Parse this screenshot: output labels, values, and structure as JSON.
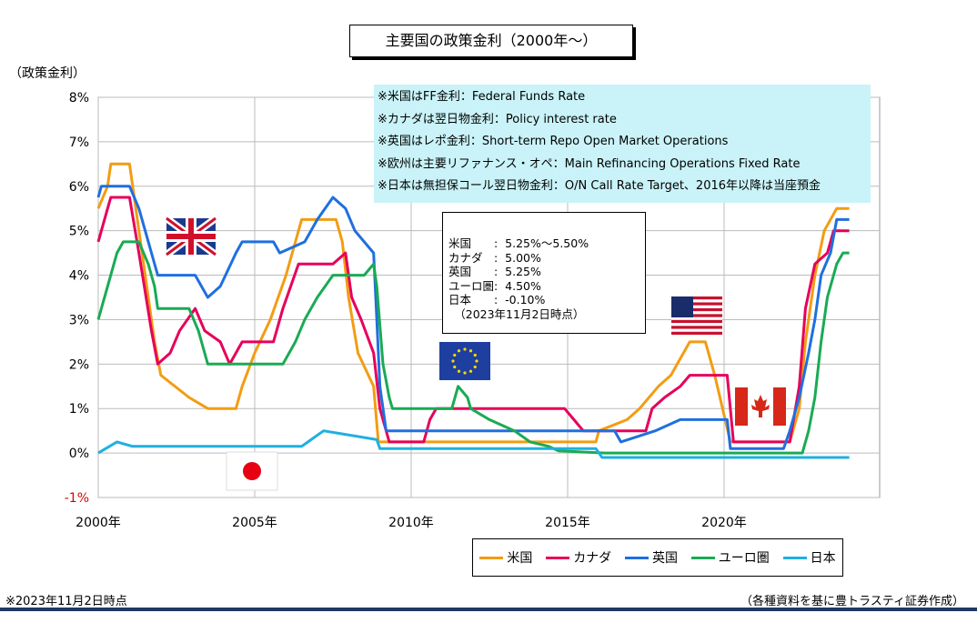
{
  "chart_data": {
    "type": "line",
    "title": "主要国の政策金利（2000年～）",
    "ylabel": "（政策金利）",
    "ylim": [
      -1,
      8
    ],
    "xlim": [
      2000,
      2025
    ],
    "y_ticks": [
      "8%",
      "7%",
      "6%",
      "5%",
      "4%",
      "3%",
      "2%",
      "1%",
      "0%",
      "-1%"
    ],
    "y_tick_values": [
      8,
      7,
      6,
      5,
      4,
      3,
      2,
      1,
      0,
      -1
    ],
    "x_ticks": [
      "2000年",
      "2005年",
      "2010年",
      "2015年",
      "2020年"
    ],
    "x_tick_values": [
      2000,
      2005,
      2010,
      2015,
      2020
    ],
    "grid": true,
    "series": [
      {
        "name": "米国",
        "color": "#f39c12",
        "points": [
          [
            2000,
            5.5
          ],
          [
            2000.3,
            6
          ],
          [
            2000.4,
            6.5
          ],
          [
            2001,
            6.5
          ],
          [
            2001.2,
            5.5
          ],
          [
            2001.5,
            4
          ],
          [
            2001.8,
            2.5
          ],
          [
            2002,
            1.75
          ],
          [
            2002.9,
            1.25
          ],
          [
            2003.5,
            1
          ],
          [
            2004.4,
            1
          ],
          [
            2004.6,
            1.5
          ],
          [
            2005,
            2.25
          ],
          [
            2005.5,
            3
          ],
          [
            2006,
            4
          ],
          [
            2006.5,
            5.25
          ],
          [
            2007.6,
            5.25
          ],
          [
            2007.8,
            4.75
          ],
          [
            2008,
            3.5
          ],
          [
            2008.3,
            2.25
          ],
          [
            2008.8,
            1.5
          ],
          [
            2008.95,
            0.25
          ],
          [
            2015.9,
            0.25
          ],
          [
            2016,
            0.5
          ],
          [
            2016.9,
            0.75
          ],
          [
            2017.3,
            1
          ],
          [
            2017.9,
            1.5
          ],
          [
            2018.3,
            1.75
          ],
          [
            2018.9,
            2.5
          ],
          [
            2019.4,
            2.5
          ],
          [
            2019.7,
            1.75
          ],
          [
            2020.2,
            0.25
          ],
          [
            2022.1,
            0.25
          ],
          [
            2022.4,
            1
          ],
          [
            2022.6,
            2.5
          ],
          [
            2022.9,
            4
          ],
          [
            2023.2,
            5
          ],
          [
            2023.6,
            5.5
          ],
          [
            2024,
            5.5
          ]
        ]
      },
      {
        "name": "カナダ",
        "color": "#e6005a",
        "points": [
          [
            2000,
            4.75
          ],
          [
            2000.3,
            5.5
          ],
          [
            2000.4,
            5.75
          ],
          [
            2001,
            5.75
          ],
          [
            2001.3,
            4.5
          ],
          [
            2001.7,
            2.75
          ],
          [
            2001.9,
            2
          ],
          [
            2002.3,
            2.25
          ],
          [
            2002.6,
            2.75
          ],
          [
            2003.1,
            3.25
          ],
          [
            2003.4,
            2.75
          ],
          [
            2003.9,
            2.5
          ],
          [
            2004.2,
            2
          ],
          [
            2004.6,
            2.5
          ],
          [
            2005.6,
            2.5
          ],
          [
            2005.9,
            3.25
          ],
          [
            2006.4,
            4.25
          ],
          [
            2007.5,
            4.25
          ],
          [
            2007.9,
            4.5
          ],
          [
            2008.1,
            3.5
          ],
          [
            2008.4,
            3
          ],
          [
            2008.8,
            2.25
          ],
          [
            2009,
            1
          ],
          [
            2009.3,
            0.25
          ],
          [
            2010.4,
            0.25
          ],
          [
            2010.6,
            0.75
          ],
          [
            2010.8,
            1
          ],
          [
            2014.9,
            1
          ],
          [
            2015.2,
            0.75
          ],
          [
            2015.5,
            0.5
          ],
          [
            2017.5,
            0.5
          ],
          [
            2017.7,
            1
          ],
          [
            2018.1,
            1.25
          ],
          [
            2018.6,
            1.5
          ],
          [
            2018.9,
            1.75
          ],
          [
            2020.1,
            1.75
          ],
          [
            2020.3,
            0.25
          ],
          [
            2022.1,
            0.25
          ],
          [
            2022.4,
            1.5
          ],
          [
            2022.6,
            3.25
          ],
          [
            2022.9,
            4.25
          ],
          [
            2023.3,
            4.5
          ],
          [
            2023.5,
            5
          ],
          [
            2024,
            5
          ]
        ]
      },
      {
        "name": "英国",
        "color": "#1f6fe0",
        "points": [
          [
            2000,
            5.75
          ],
          [
            2000.1,
            6
          ],
          [
            2001,
            6
          ],
          [
            2001.3,
            5.5
          ],
          [
            2001.7,
            4.5
          ],
          [
            2001.9,
            4
          ],
          [
            2003.1,
            4
          ],
          [
            2003.5,
            3.5
          ],
          [
            2003.9,
            3.75
          ],
          [
            2004.4,
            4.5
          ],
          [
            2004.6,
            4.75
          ],
          [
            2005.6,
            4.75
          ],
          [
            2005.8,
            4.5
          ],
          [
            2006.6,
            4.75
          ],
          [
            2007,
            5.25
          ],
          [
            2007.5,
            5.75
          ],
          [
            2007.9,
            5.5
          ],
          [
            2008.2,
            5
          ],
          [
            2008.8,
            4.5
          ],
          [
            2008.9,
            3
          ],
          [
            2009,
            1.5
          ],
          [
            2009.2,
            0.5
          ],
          [
            2016.5,
            0.5
          ],
          [
            2016.7,
            0.25
          ],
          [
            2017.8,
            0.5
          ],
          [
            2018.6,
            0.75
          ],
          [
            2020.1,
            0.75
          ],
          [
            2020.2,
            0.1
          ],
          [
            2021.9,
            0.1
          ],
          [
            2022.1,
            0.5
          ],
          [
            2022.4,
            1.25
          ],
          [
            2022.7,
            2.25
          ],
          [
            2022.9,
            3
          ],
          [
            2023.1,
            4
          ],
          [
            2023.4,
            4.5
          ],
          [
            2023.6,
            5.25
          ],
          [
            2024,
            5.25
          ]
        ]
      },
      {
        "name": "ユーロ圏",
        "color": "#1aaa55",
        "points": [
          [
            2000,
            3
          ],
          [
            2000.3,
            3.75
          ],
          [
            2000.6,
            4.5
          ],
          [
            2000.8,
            4.75
          ],
          [
            2001.3,
            4.75
          ],
          [
            2001.6,
            4.25
          ],
          [
            2001.8,
            3.75
          ],
          [
            2001.9,
            3.25
          ],
          [
            2002.9,
            3.25
          ],
          [
            2003.2,
            2.75
          ],
          [
            2003.5,
            2
          ],
          [
            2005.9,
            2
          ],
          [
            2006.3,
            2.5
          ],
          [
            2006.6,
            3
          ],
          [
            2007,
            3.5
          ],
          [
            2007.5,
            4
          ],
          [
            2008.5,
            4
          ],
          [
            2008.8,
            4.25
          ],
          [
            2008.9,
            3.75
          ],
          [
            2009.1,
            2
          ],
          [
            2009.3,
            1.25
          ],
          [
            2009.4,
            1
          ],
          [
            2011.3,
            1
          ],
          [
            2011.5,
            1.5
          ],
          [
            2011.8,
            1.25
          ],
          [
            2011.9,
            1
          ],
          [
            2012.5,
            0.75
          ],
          [
            2013.3,
            0.5
          ],
          [
            2013.8,
            0.25
          ],
          [
            2014.4,
            0.15
          ],
          [
            2014.7,
            0.05
          ],
          [
            2016.2,
            0
          ],
          [
            2022.5,
            0
          ],
          [
            2022.7,
            0.5
          ],
          [
            2022.9,
            1.25
          ],
          [
            2023.1,
            2.5
          ],
          [
            2023.3,
            3.5
          ],
          [
            2023.6,
            4.25
          ],
          [
            2023.8,
            4.5
          ],
          [
            2024,
            4.5
          ]
        ]
      },
      {
        "name": "日本",
        "color": "#1fb0e0",
        "points": [
          [
            2000,
            0
          ],
          [
            2000.6,
            0.25
          ],
          [
            2001.1,
            0.15
          ],
          [
            2006.5,
            0.15
          ],
          [
            2006.7,
            0.25
          ],
          [
            2007.2,
            0.5
          ],
          [
            2008.9,
            0.3
          ],
          [
            2009,
            0.1
          ],
          [
            2015.9,
            0.1
          ],
          [
            2016.1,
            -0.1
          ],
          [
            2024,
            -0.1
          ]
        ]
      }
    ],
    "notes": [
      "※米国はFF金利：Federal Funds Rate",
      "※カナダは翌日物金利：Policy interest rate",
      "※英国はレポ金利：Short-term Repo Open Market Operations",
      "※欧州は主要リファナンス・オペ：Main Refinancing Operations Fixed Rate",
      "※日本は無担保コール翌日物金利：O/N Call Rate Target、2016年以降は当座預金"
    ],
    "latest_rates": [
      "米国　　:  5.25%～5.50%",
      "カナダ　:  5.00%",
      "英国　　:  5.25%",
      "ユーロ圏:  4.50%",
      "日本　　:  -0.10%",
      "　（2023年11月2日時点）"
    ],
    "legend_placement": "bottom"
  },
  "footer": {
    "left": "※2023年11月2日時点",
    "right": "（各種資料を基に豊トラスティ証券作成）"
  },
  "colors": {
    "bottom_bar": "#1f3864"
  }
}
